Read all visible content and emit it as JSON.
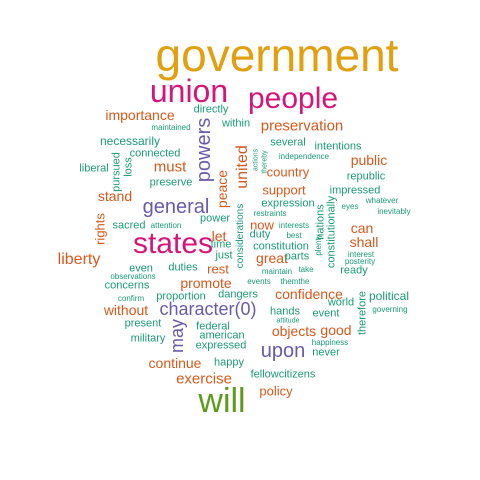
{
  "colors": {
    "gold": "#e0a010",
    "magenta": "#d6147a",
    "purple": "#6a5aa8",
    "orange": "#d4591c",
    "teal": "#1c9a78",
    "green": "#5e9a1e"
  },
  "words": [
    {
      "id": "government",
      "text": "government",
      "color": "gold"
    },
    {
      "id": "union",
      "text": "union",
      "color": "magenta"
    },
    {
      "id": "people",
      "text": "people",
      "color": "magenta"
    },
    {
      "id": "states",
      "text": "states",
      "color": "magenta"
    },
    {
      "id": "will",
      "text": "will",
      "color": "green"
    },
    {
      "id": "general",
      "text": "general",
      "color": "purple"
    },
    {
      "id": "powers",
      "text": "powers",
      "color": "purple"
    },
    {
      "id": "may",
      "text": "may",
      "color": "purple"
    },
    {
      "id": "upon",
      "text": "upon",
      "color": "purple"
    },
    {
      "id": "character0",
      "text": "character(0)",
      "color": "purple"
    },
    {
      "id": "preservation",
      "text": "preservation",
      "color": "orange"
    },
    {
      "id": "importance",
      "text": "importance",
      "color": "orange"
    },
    {
      "id": "must",
      "text": "must",
      "color": "orange"
    },
    {
      "id": "united",
      "text": "united",
      "color": "orange"
    },
    {
      "id": "country",
      "text": "country",
      "color": "orange"
    },
    {
      "id": "public",
      "text": "public",
      "color": "orange"
    },
    {
      "id": "support",
      "text": "support",
      "color": "orange"
    },
    {
      "id": "stand",
      "text": "stand",
      "color": "orange"
    },
    {
      "id": "liberty",
      "text": "liberty",
      "color": "orange"
    },
    {
      "id": "let",
      "text": "let",
      "color": "orange"
    },
    {
      "id": "now",
      "text": "now",
      "color": "orange"
    },
    {
      "id": "great",
      "text": "great",
      "color": "orange"
    },
    {
      "id": "can",
      "text": "can",
      "color": "orange"
    },
    {
      "id": "shall",
      "text": "shall",
      "color": "orange"
    },
    {
      "id": "rest",
      "text": "rest",
      "color": "orange"
    },
    {
      "id": "promote",
      "text": "promote",
      "color": "orange"
    },
    {
      "id": "confidence",
      "text": "confidence",
      "color": "orange"
    },
    {
      "id": "without",
      "text": "without",
      "color": "orange"
    },
    {
      "id": "objects",
      "text": "objects",
      "color": "orange"
    },
    {
      "id": "good",
      "text": "good",
      "color": "orange"
    },
    {
      "id": "continue",
      "text": "continue",
      "color": "orange"
    },
    {
      "id": "exercise",
      "text": "exercise",
      "color": "orange"
    },
    {
      "id": "policy",
      "text": "policy",
      "color": "orange"
    },
    {
      "id": "peace",
      "text": "peace",
      "color": "orange"
    },
    {
      "id": "rights",
      "text": "rights",
      "color": "orange"
    },
    {
      "id": "directly",
      "text": "directly",
      "color": "teal"
    },
    {
      "id": "maintained",
      "text": "maintained",
      "color": "teal"
    },
    {
      "id": "necessarily",
      "text": "necessarily",
      "color": "teal"
    },
    {
      "id": "within",
      "text": "within",
      "color": "teal"
    },
    {
      "id": "connected",
      "text": "connected",
      "color": "teal"
    },
    {
      "id": "several",
      "text": "several",
      "color": "teal"
    },
    {
      "id": "intentions",
      "text": "intentions",
      "color": "teal"
    },
    {
      "id": "independence",
      "text": "independence",
      "color": "teal"
    },
    {
      "id": "liberal",
      "text": "liberal",
      "color": "teal"
    },
    {
      "id": "pursued",
      "text": "pursued",
      "color": "teal"
    },
    {
      "id": "loss",
      "text": "loss",
      "color": "teal"
    },
    {
      "id": "preserve",
      "text": "preserve",
      "color": "teal"
    },
    {
      "id": "actions",
      "text": "actions",
      "color": "teal"
    },
    {
      "id": "thereby",
      "text": "thereby",
      "color": "teal"
    },
    {
      "id": "republic",
      "text": "republic",
      "color": "teal"
    },
    {
      "id": "impressed",
      "text": "impressed",
      "color": "teal"
    },
    {
      "id": "whatever",
      "text": "whatever",
      "color": "teal"
    },
    {
      "id": "inevitably",
      "text": "inevitably",
      "color": "teal"
    },
    {
      "id": "eyes",
      "text": "eyes",
      "color": "teal"
    },
    {
      "id": "expression",
      "text": "expression",
      "color": "teal"
    },
    {
      "id": "restraints",
      "text": "restraints",
      "color": "teal"
    },
    {
      "id": "power",
      "text": "power",
      "color": "teal"
    },
    {
      "id": "attention",
      "text": "attention",
      "color": "teal"
    },
    {
      "id": "sacred",
      "text": "sacred",
      "color": "teal"
    },
    {
      "id": "considerations",
      "text": "considerations",
      "color": "teal"
    },
    {
      "id": "nations",
      "text": "nations",
      "color": "teal"
    },
    {
      "id": "constitutionally",
      "text": "constitutionally",
      "color": "teal"
    },
    {
      "id": "interests",
      "text": "interests",
      "color": "teal"
    },
    {
      "id": "best",
      "text": "best",
      "color": "teal"
    },
    {
      "id": "just",
      "text": "just",
      "color": "teal"
    },
    {
      "id": "time",
      "text": "time",
      "color": "teal"
    },
    {
      "id": "duty",
      "text": "duty",
      "color": "teal"
    },
    {
      "id": "constitution",
      "text": "constitution",
      "color": "teal"
    },
    {
      "id": "parts",
      "text": "parts",
      "color": "teal"
    },
    {
      "id": "plenty",
      "text": "plenty",
      "color": "teal"
    },
    {
      "id": "interest",
      "text": "interest",
      "color": "teal"
    },
    {
      "id": "posterity",
      "text": "posterity",
      "color": "teal"
    },
    {
      "id": "ready",
      "text": "ready",
      "color": "teal"
    },
    {
      "id": "even",
      "text": "even",
      "color": "teal"
    },
    {
      "id": "duties",
      "text": "duties",
      "color": "teal"
    },
    {
      "id": "maintain",
      "text": "maintain",
      "color": "teal"
    },
    {
      "id": "take",
      "text": "take",
      "color": "teal"
    },
    {
      "id": "observations",
      "text": "observations",
      "color": "teal"
    },
    {
      "id": "concerns",
      "text": "concerns",
      "color": "teal"
    },
    {
      "id": "events",
      "text": "events",
      "color": "teal"
    },
    {
      "id": "themthe",
      "text": "themthe",
      "color": "teal"
    },
    {
      "id": "dangers",
      "text": "dangers",
      "color": "teal"
    },
    {
      "id": "confirm",
      "text": "confirm",
      "color": "teal"
    },
    {
      "id": "proportion",
      "text": "proportion",
      "color": "teal"
    },
    {
      "id": "world",
      "text": "world",
      "color": "teal"
    },
    {
      "id": "political",
      "text": "political",
      "color": "teal"
    },
    {
      "id": "hands",
      "text": "hands",
      "color": "teal"
    },
    {
      "id": "event",
      "text": "event",
      "color": "teal"
    },
    {
      "id": "therefore",
      "text": "therefore",
      "color": "teal"
    },
    {
      "id": "governing",
      "text": "governing",
      "color": "teal"
    },
    {
      "id": "present",
      "text": "present",
      "color": "teal"
    },
    {
      "id": "federal",
      "text": "federal",
      "color": "teal"
    },
    {
      "id": "attitude",
      "text": "attitude",
      "color": "teal"
    },
    {
      "id": "military",
      "text": "military",
      "color": "teal"
    },
    {
      "id": "american",
      "text": "american",
      "color": "teal"
    },
    {
      "id": "happiness",
      "text": "happiness",
      "color": "teal"
    },
    {
      "id": "expressed",
      "text": "expressed",
      "color": "teal"
    },
    {
      "id": "never",
      "text": "never",
      "color": "teal"
    },
    {
      "id": "happy",
      "text": "happy",
      "color": "teal"
    },
    {
      "id": "fellowcitizens",
      "text": "fellowcitizens",
      "color": "teal"
    }
  ]
}
